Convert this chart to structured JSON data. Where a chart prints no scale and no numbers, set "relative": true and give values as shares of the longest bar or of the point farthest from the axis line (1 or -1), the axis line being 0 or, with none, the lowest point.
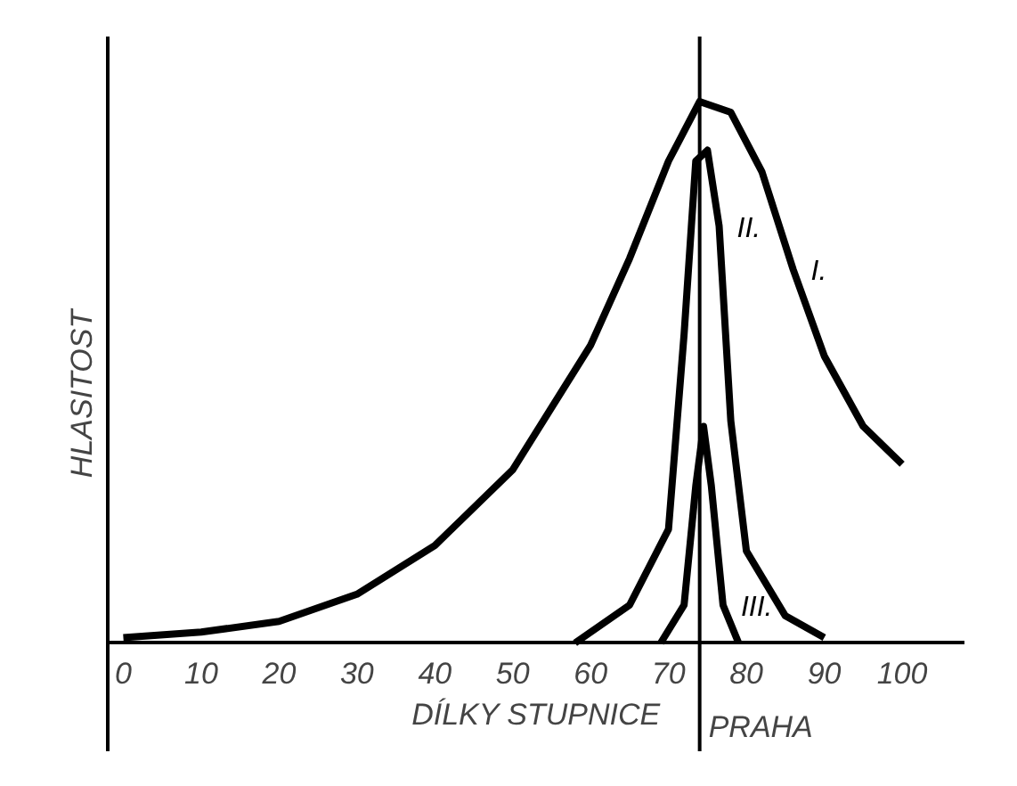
{
  "chart_data": {
    "type": "line",
    "relative": true,
    "xlabel": "DÍLKY STUPNICE",
    "ylabel": "HLASITOST",
    "xlim": [
      -2,
      108
    ],
    "xticks": [
      0,
      10,
      20,
      30,
      40,
      50,
      60,
      70,
      80,
      90,
      100
    ],
    "grid": false,
    "marker": "none",
    "line_style": "solid",
    "ref_lines": [
      {
        "axis": "x",
        "value": 74,
        "label": "PRAHA",
        "color": "#000000"
      }
    ],
    "series": [
      {
        "name": "I.",
        "color": "#000000",
        "x": [
          0,
          10,
          20,
          30,
          40,
          50,
          60,
          65,
          70,
          74,
          78,
          82,
          86,
          90,
          95,
          100
        ],
        "values": [
          0.01,
          0.02,
          0.04,
          0.09,
          0.18,
          0.32,
          0.55,
          0.71,
          0.89,
          1.0,
          0.98,
          0.87,
          0.69,
          0.53,
          0.4,
          0.33
        ]
      },
      {
        "name": "II.",
        "color": "#000000",
        "x": [
          58,
          65,
          70,
          72,
          73.5,
          75,
          76.5,
          78,
          80,
          85,
          90
        ],
        "values": [
          0,
          0.07,
          0.21,
          0.57,
          0.89,
          0.91,
          0.77,
          0.41,
          0.17,
          0.05,
          0.01
        ]
      },
      {
        "name": "III.",
        "color": "#000000",
        "x": [
          69,
          72,
          73.5,
          74.5,
          75.5,
          77,
          79
        ],
        "values": [
          0,
          0.07,
          0.29,
          0.4,
          0.29,
          0.07,
          0
        ]
      }
    ]
  }
}
